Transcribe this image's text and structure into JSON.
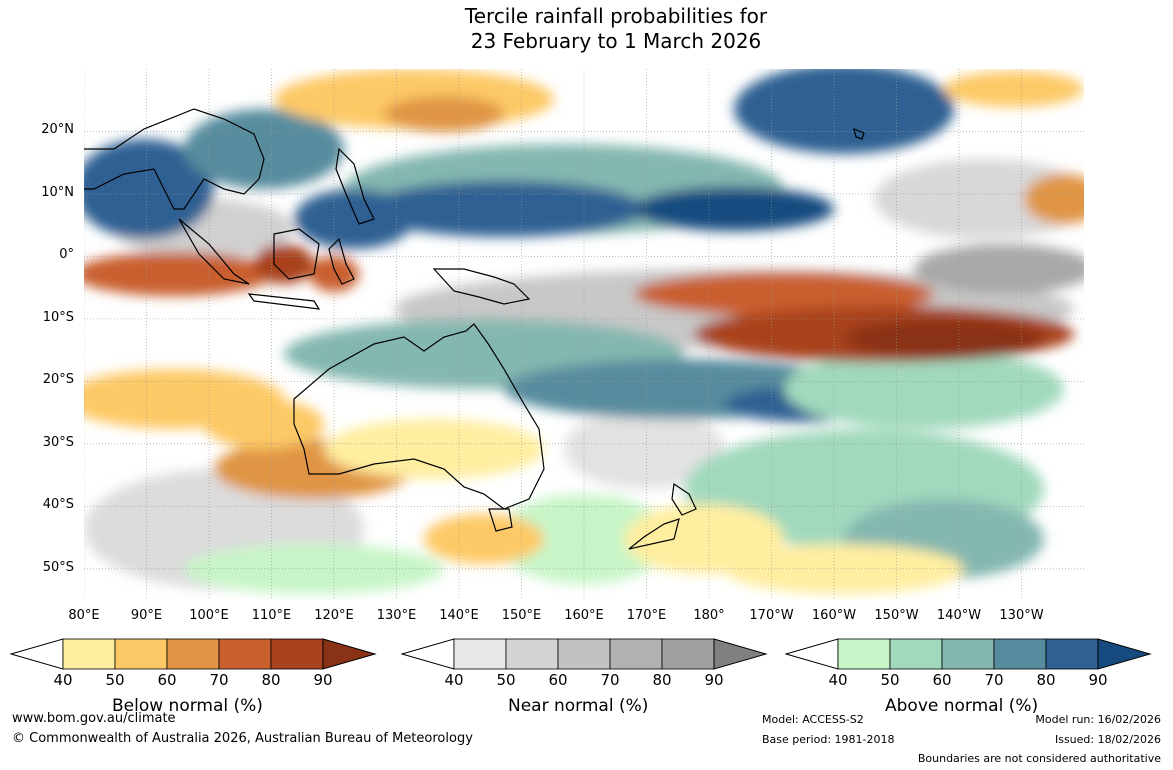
{
  "title": {
    "line1": "Tercile rainfall probabilities for",
    "line2": "23 February to 1 March 2026"
  },
  "axes": {
    "lat_labels": [
      "20°N",
      "10°N",
      "0°",
      "10°S",
      "20°S",
      "30°S",
      "40°S",
      "50°S"
    ],
    "lon_labels": [
      "80°E",
      "90°E",
      "100°E",
      "110°E",
      "120°E",
      "130°E",
      "140°E",
      "150°E",
      "160°E",
      "170°E",
      "180°",
      "170°W",
      "160°W",
      "150°W",
      "140°W",
      "130°W"
    ],
    "lon_range": [
      80,
      240
    ],
    "lat_range": [
      -55,
      30
    ],
    "gridlines": true
  },
  "colorbars": [
    {
      "title": "Below normal (%)",
      "ticks": [
        "40",
        "50",
        "60",
        "70",
        "80",
        "90"
      ],
      "colors": [
        "#ffeea0",
        "#fdc966",
        "#e09545",
        "#c95f2d",
        "#a9431f",
        "#8a3215"
      ]
    },
    {
      "title": "Near normal (%)",
      "ticks": [
        "40",
        "50",
        "60",
        "70",
        "80",
        "90"
      ],
      "colors": [
        "#e8e8e8",
        "#d4d4d4",
        "#c2c2c2",
        "#b1b1b1",
        "#a0a0a0",
        "#808080"
      ]
    },
    {
      "title": "Above normal (%)",
      "ticks": [
        "40",
        "50",
        "60",
        "70",
        "80",
        "90"
      ],
      "colors": [
        "#c8f5c8",
        "#a1d9bd",
        "#84b7b0",
        "#578c9e",
        "#2f6193",
        "#174b80"
      ]
    }
  ],
  "footer": {
    "website": "www.bom.gov.au/climate",
    "copyright": "© Commonwealth of Australia 2026, Australian Bureau of Meteorology",
    "model": "Model: ACCESS-S2",
    "base_period": "Base period: 1981-2018",
    "model_run": "Model run: 16/02/2026",
    "issued": "Issued: 18/02/2026",
    "disclaimer": "Boundaries are not considered authoritative"
  }
}
